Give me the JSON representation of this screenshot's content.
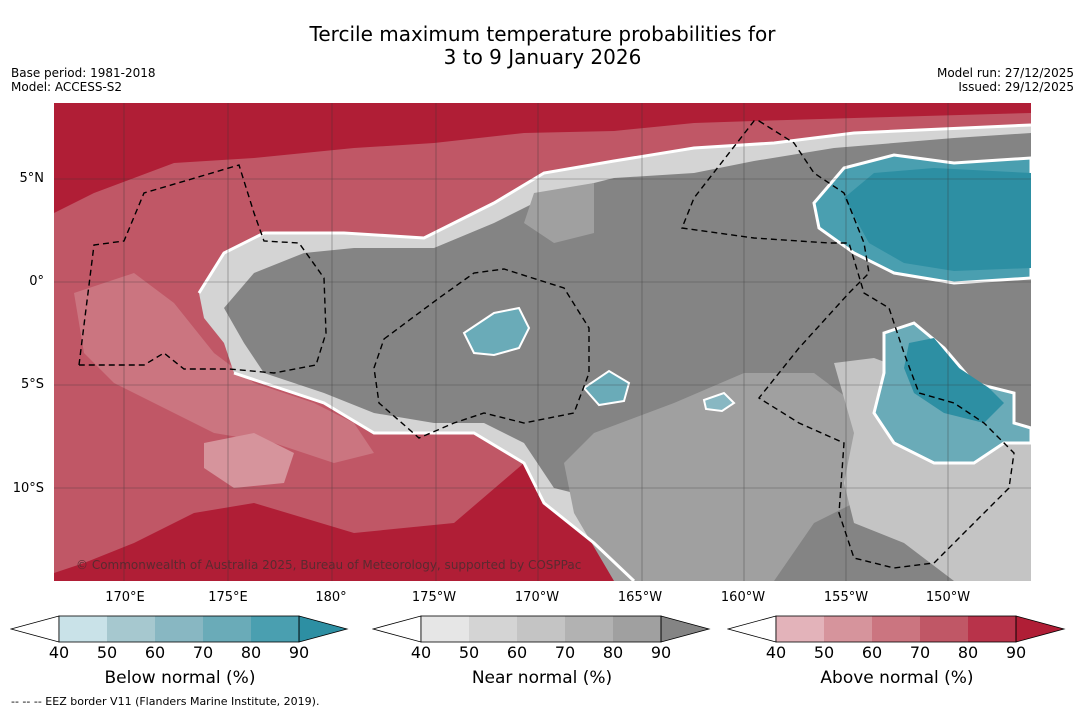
{
  "title": {
    "line1": "Tercile maximum temperature probabilities for",
    "line2": "3 to 9 January 2026"
  },
  "meta": {
    "base_period": "Base period: 1981-2018",
    "model": "Model: ACCESS-S2",
    "model_run": "Model run: 27/12/2025",
    "issued": "Issued: 29/12/2025"
  },
  "map": {
    "lat_labels": [
      "5°N",
      "0°",
      "5°S",
      "10°S"
    ],
    "lon_labels": [
      "170°E",
      "175°E",
      "180°",
      "175°W",
      "170°W",
      "165°W",
      "160°W",
      "155°W",
      "150°W"
    ],
    "copyright": "© Commonwealth of Australia 2025, Bureau of Meteorology, supported by COSPPac"
  },
  "colorbars": [
    {
      "label": "Below normal (%)",
      "ticks": [
        "40",
        "50",
        "60",
        "70",
        "80",
        "90"
      ],
      "colors": [
        "#ffffff",
        "#c9e2e8",
        "#a6c8cf",
        "#88b7c2",
        "#6aabb8",
        "#4a9fb0",
        "#2d8fa3"
      ]
    },
    {
      "label": "Near normal (%)",
      "ticks": [
        "40",
        "50",
        "60",
        "70",
        "80",
        "90"
      ],
      "colors": [
        "#ffffff",
        "#e6e6e6",
        "#d4d4d4",
        "#c4c4c4",
        "#b2b2b2",
        "#a0a0a0",
        "#848484"
      ]
    },
    {
      "label": "Above normal (%)",
      "ticks": [
        "40",
        "50",
        "60",
        "70",
        "80",
        "90"
      ],
      "colors": [
        "#ffffff",
        "#e3b3ba",
        "#d6949c",
        "#cb7580",
        "#c05766",
        "#b8334a",
        "#b01e36"
      ]
    }
  ],
  "footnote": "--  --  -- EEZ border V11 (Flanders Marine Institute, 2019)."
}
